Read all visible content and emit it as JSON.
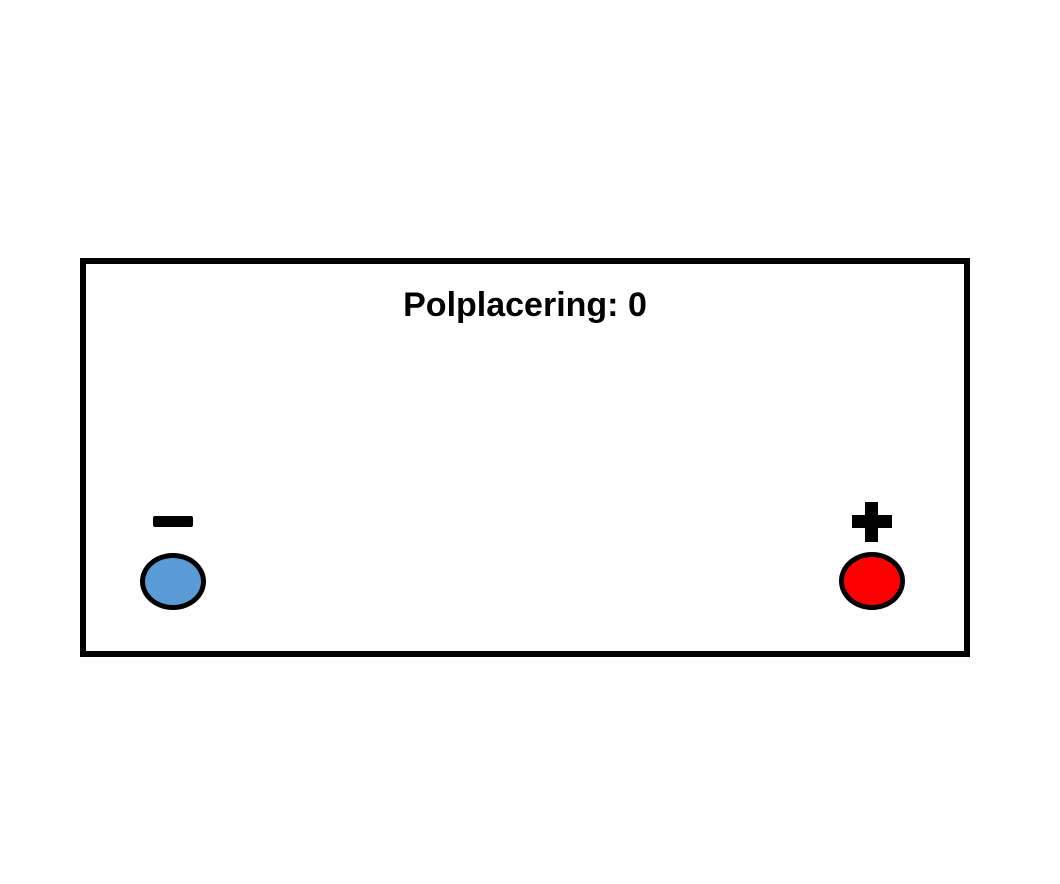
{
  "canvas": {
    "background": "#FFFFFF"
  },
  "battery": {
    "label": "Polplacering:",
    "count": "0",
    "border_color": "#000000",
    "fill": "#FFFFFF",
    "text_color": "#000000"
  },
  "poles": {
    "negative": {
      "icon": "minus-icon",
      "symbol": "−",
      "sign_color": "#000000",
      "fill": "#5B9BD5",
      "outline": "#000000"
    },
    "positive": {
      "icon": "plus-icon",
      "symbol": "+",
      "sign_color": "#000000",
      "fill": "#FF0000",
      "outline": "#000000"
    }
  }
}
